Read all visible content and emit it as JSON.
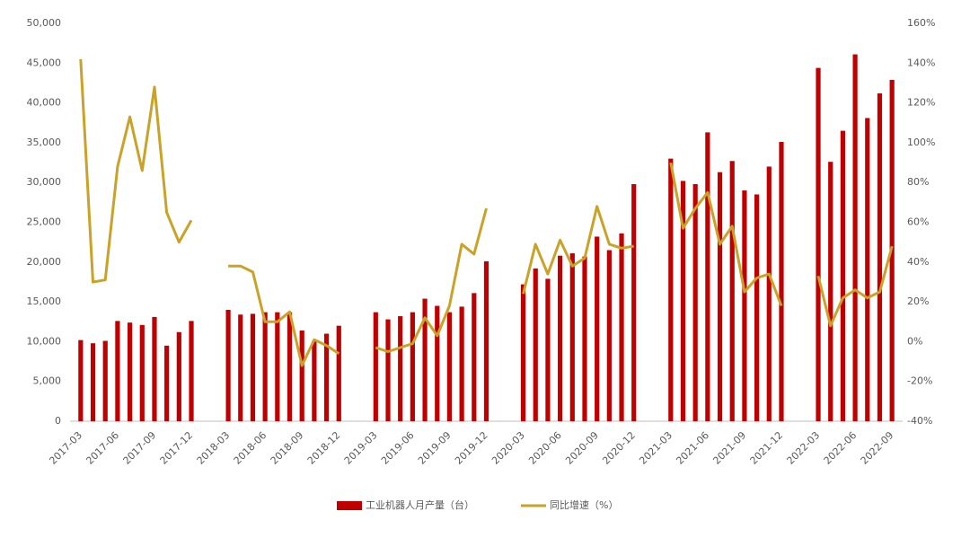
{
  "chart_data": {
    "type": "bar-line",
    "categories": [
      "2017-03",
      null,
      null,
      "2017-06",
      null,
      null,
      "2017-09",
      null,
      null,
      "2017-12",
      null,
      null,
      "2018-03",
      null,
      null,
      "2018-06",
      null,
      null,
      "2018-09",
      null,
      null,
      "2018-12",
      null,
      null,
      "2019-03",
      null,
      null,
      "2019-06",
      null,
      null,
      "2019-09",
      null,
      null,
      "2019-12",
      null,
      null,
      "2020-03",
      null,
      null,
      "2020-06",
      null,
      null,
      "2020-09",
      null,
      null,
      "2020-12",
      null,
      null,
      "2021-03",
      null,
      null,
      "2021-06",
      null,
      null,
      "2021-09",
      null,
      null,
      "2021-12",
      null,
      null,
      "2022-03",
      null,
      null,
      "2022-06",
      null,
      null,
      "2022-09"
    ],
    "series": [
      {
        "name": "工业机器人月产量（台）",
        "type": "bar",
        "color": "#c00000",
        "values": [
          10200,
          9800,
          10100,
          12600,
          12400,
          12100,
          13100,
          9500,
          11200,
          12600,
          null,
          null,
          14000,
          13400,
          13500,
          13700,
          13700,
          13700,
          11400,
          10100,
          11000,
          12000,
          null,
          null,
          13700,
          12800,
          13200,
          13700,
          15400,
          14500,
          13700,
          14400,
          16100,
          20100,
          null,
          null,
          17200,
          19200,
          17900,
          20800,
          21100,
          20700,
          23200,
          21500,
          23600,
          29800,
          null,
          null,
          33000,
          30200,
          29800,
          36300,
          31300,
          32700,
          29000,
          28500,
          32000,
          35100,
          null,
          null,
          44400,
          32600,
          36500,
          46100,
          38100,
          41200,
          42900
        ]
      },
      {
        "name": "同比增速（%）",
        "type": "line",
        "axis": "y2",
        "color": "#c9a227",
        "values": [
          142,
          30,
          31,
          88,
          113,
          86,
          128,
          65,
          50,
          61,
          null,
          null,
          38,
          38,
          35,
          10,
          10,
          15,
          -12,
          1,
          -2,
          -6,
          null,
          null,
          -3,
          -5,
          -3,
          -1,
          12,
          3,
          18,
          49,
          44,
          67,
          null,
          null,
          24,
          49,
          34,
          51,
          38,
          42,
          68,
          49,
          47,
          48,
          null,
          null,
          90,
          57,
          67,
          75,
          49,
          58,
          25,
          32,
          34,
          18,
          null,
          null,
          33,
          8,
          22,
          26,
          22,
          25,
          48
        ]
      }
    ],
    "ylim": [
      0,
      50000
    ],
    "yticks": [
      0,
      {
        "value": 5000,
        "label": "5,000"
      },
      {
        "value": 10000,
        "label": "10,000"
      },
      {
        "value": 15000,
        "label": "15,000"
      },
      {
        "value": 20000,
        "label": "20,000"
      },
      {
        "value": 25000,
        "label": "25,000"
      },
      {
        "value": 30000,
        "label": "30,000"
      },
      {
        "value": 35000,
        "label": "35,000"
      },
      {
        "value": 40000,
        "label": "40,000"
      },
      {
        "value": 45000,
        "label": "45,000"
      },
      {
        "value": 50000,
        "label": "50,000"
      }
    ],
    "y2lim": [
      -40,
      160
    ],
    "y2ticks": [
      {
        "value": -40,
        "label": "-40%"
      },
      {
        "value": -20,
        "label": "-20%"
      },
      {
        "value": 0,
        "label": "0%"
      },
      {
        "value": 20,
        "label": "20%"
      },
      {
        "value": 40,
        "label": "40%"
      },
      {
        "value": 60,
        "label": "60%"
      },
      {
        "value": 80,
        "label": "80%"
      },
      {
        "value": 100,
        "label": "100%"
      },
      {
        "value": 120,
        "label": "120%"
      },
      {
        "value": 140,
        "label": "140%"
      },
      {
        "value": 160,
        "label": "160%"
      }
    ],
    "legend": "bottom"
  }
}
